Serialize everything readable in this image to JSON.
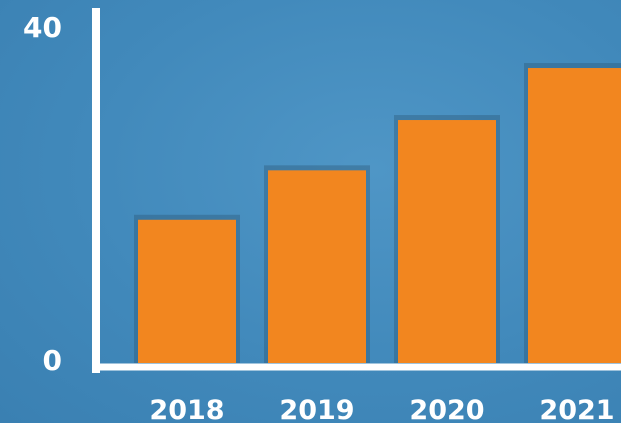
{
  "chart_data": {
    "type": "bar",
    "title": "",
    "xlabel": "",
    "ylabel": "",
    "categories": [
      "2018",
      "2019",
      "2020",
      "2021"
    ],
    "values": [
      16.8,
      22.6,
      28.5,
      34.6
    ],
    "ylim": [
      0,
      40
    ],
    "y_ticks": [
      "0",
      "40"
    ],
    "grid": false,
    "legend": "none",
    "colors": {
      "bar": "#f2861f",
      "bar_top": "#f59a33",
      "axis": "#ffffff",
      "background": "#4189bb"
    }
  }
}
